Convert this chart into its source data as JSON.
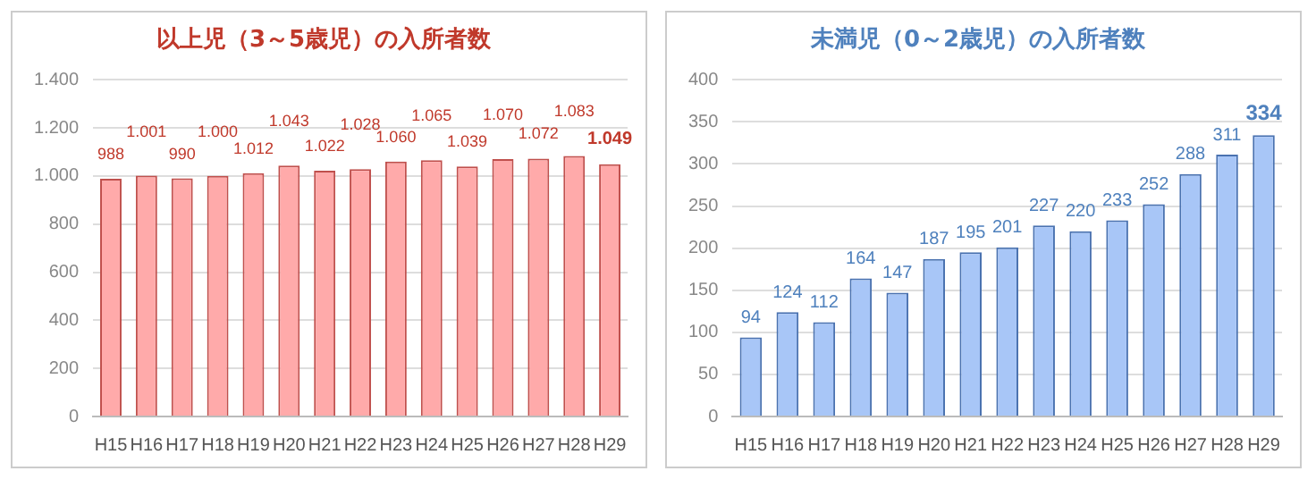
{
  "chart_data": [
    {
      "type": "bar",
      "title": "以上児（3～5歳児）の入所者数",
      "categories": [
        "H15",
        "H16",
        "H17",
        "H18",
        "H19",
        "H20",
        "H21",
        "H22",
        "H23",
        "H24",
        "H25",
        "H26",
        "H27",
        "H28",
        "H29"
      ],
      "series": [
        {
          "color": "#ffaaaa",
          "values": [
            988,
            1001,
            990,
            1000,
            1012,
            1043,
            1022,
            1028,
            1060,
            1065,
            1039,
            1070,
            1072,
            1083,
            1049
          ]
        }
      ],
      "value_labels": [
        "988",
        "1.001",
        "990",
        "1.000",
        "1.012",
        "1.043",
        "1.022",
        "1.028",
        "1.060",
        "1.065",
        "1.039",
        "1.070",
        "1.072",
        "1.083",
        "1.049"
      ],
      "ylim": [
        0,
        1400
      ],
      "yticks": [
        0,
        200,
        400,
        600,
        800,
        {
          "value": 1000,
          "label": "1.000"
        },
        {
          "value": 1200,
          "label": "1.200"
        },
        {
          "value": 1400,
          "label": "1.400"
        }
      ],
      "grid": "y"
    },
    {
      "type": "bar",
      "title": "未満児（0～2歳児）の入所者数",
      "categories": [
        "H15",
        "H16",
        "H17",
        "H18",
        "H19",
        "H20",
        "H21",
        "H22",
        "H23",
        "H24",
        "H25",
        "H26",
        "H27",
        "H28",
        "H29"
      ],
      "series": [
        {
          "color": "#a8c6f7",
          "values": [
            94,
            124,
            112,
            164,
            147,
            187,
            195,
            201,
            227,
            220,
            233,
            252,
            288,
            311,
            334
          ]
        }
      ],
      "data_labels": true,
      "ylim": [
        0,
        400
      ],
      "yticks": [
        0,
        50,
        100,
        150,
        200,
        250,
        300,
        350,
        400
      ],
      "grid": "y"
    }
  ]
}
